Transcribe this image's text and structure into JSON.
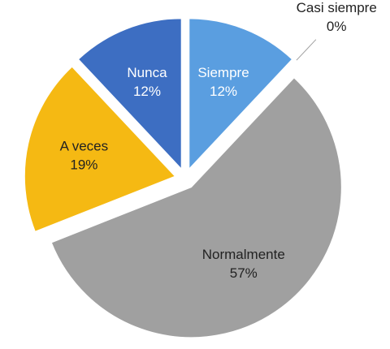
{
  "chart_data": {
    "type": "pie",
    "categories": [
      "Siempre",
      "Casi siempre",
      "Normalmente",
      "A veces",
      "Nunca"
    ],
    "values": [
      12,
      0,
      57,
      19,
      12
    ],
    "value_labels": [
      "12%",
      "0%",
      "57%",
      "19%",
      "12%"
    ],
    "colors": [
      "#5a9ee0",
      "#8fb4dc",
      "#a0a0a0",
      "#f5b913",
      "#3d6ec2"
    ]
  }
}
